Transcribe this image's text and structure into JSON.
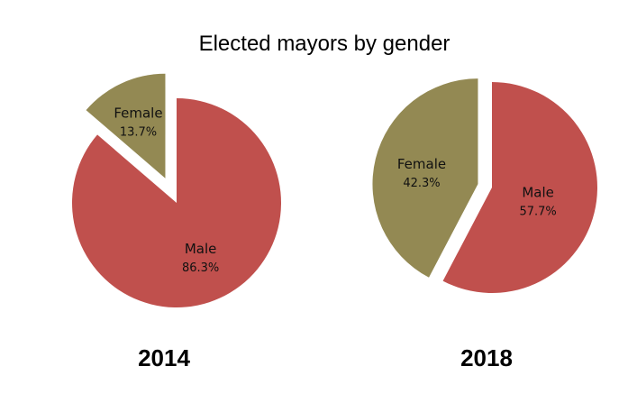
{
  "chart_data": [
    {
      "type": "pie",
      "title": "Elected mayors by gender",
      "caption": "2014",
      "slices": [
        {
          "label": "Male",
          "value": 86.3,
          "value_label": "86.3%",
          "color": "#C0504D",
          "exploded": false
        },
        {
          "label": "Female",
          "value": 13.7,
          "value_label": "13.7%",
          "color": "#938953",
          "exploded": true
        }
      ]
    },
    {
      "type": "pie",
      "caption": "2018",
      "slices": [
        {
          "label": "Male",
          "value": 57.7,
          "value_label": "57.7%",
          "color": "#C0504D",
          "exploded": false
        },
        {
          "label": "Female",
          "value": 42.3,
          "value_label": "42.3%",
          "color": "#938953",
          "exploded": true
        }
      ]
    }
  ]
}
